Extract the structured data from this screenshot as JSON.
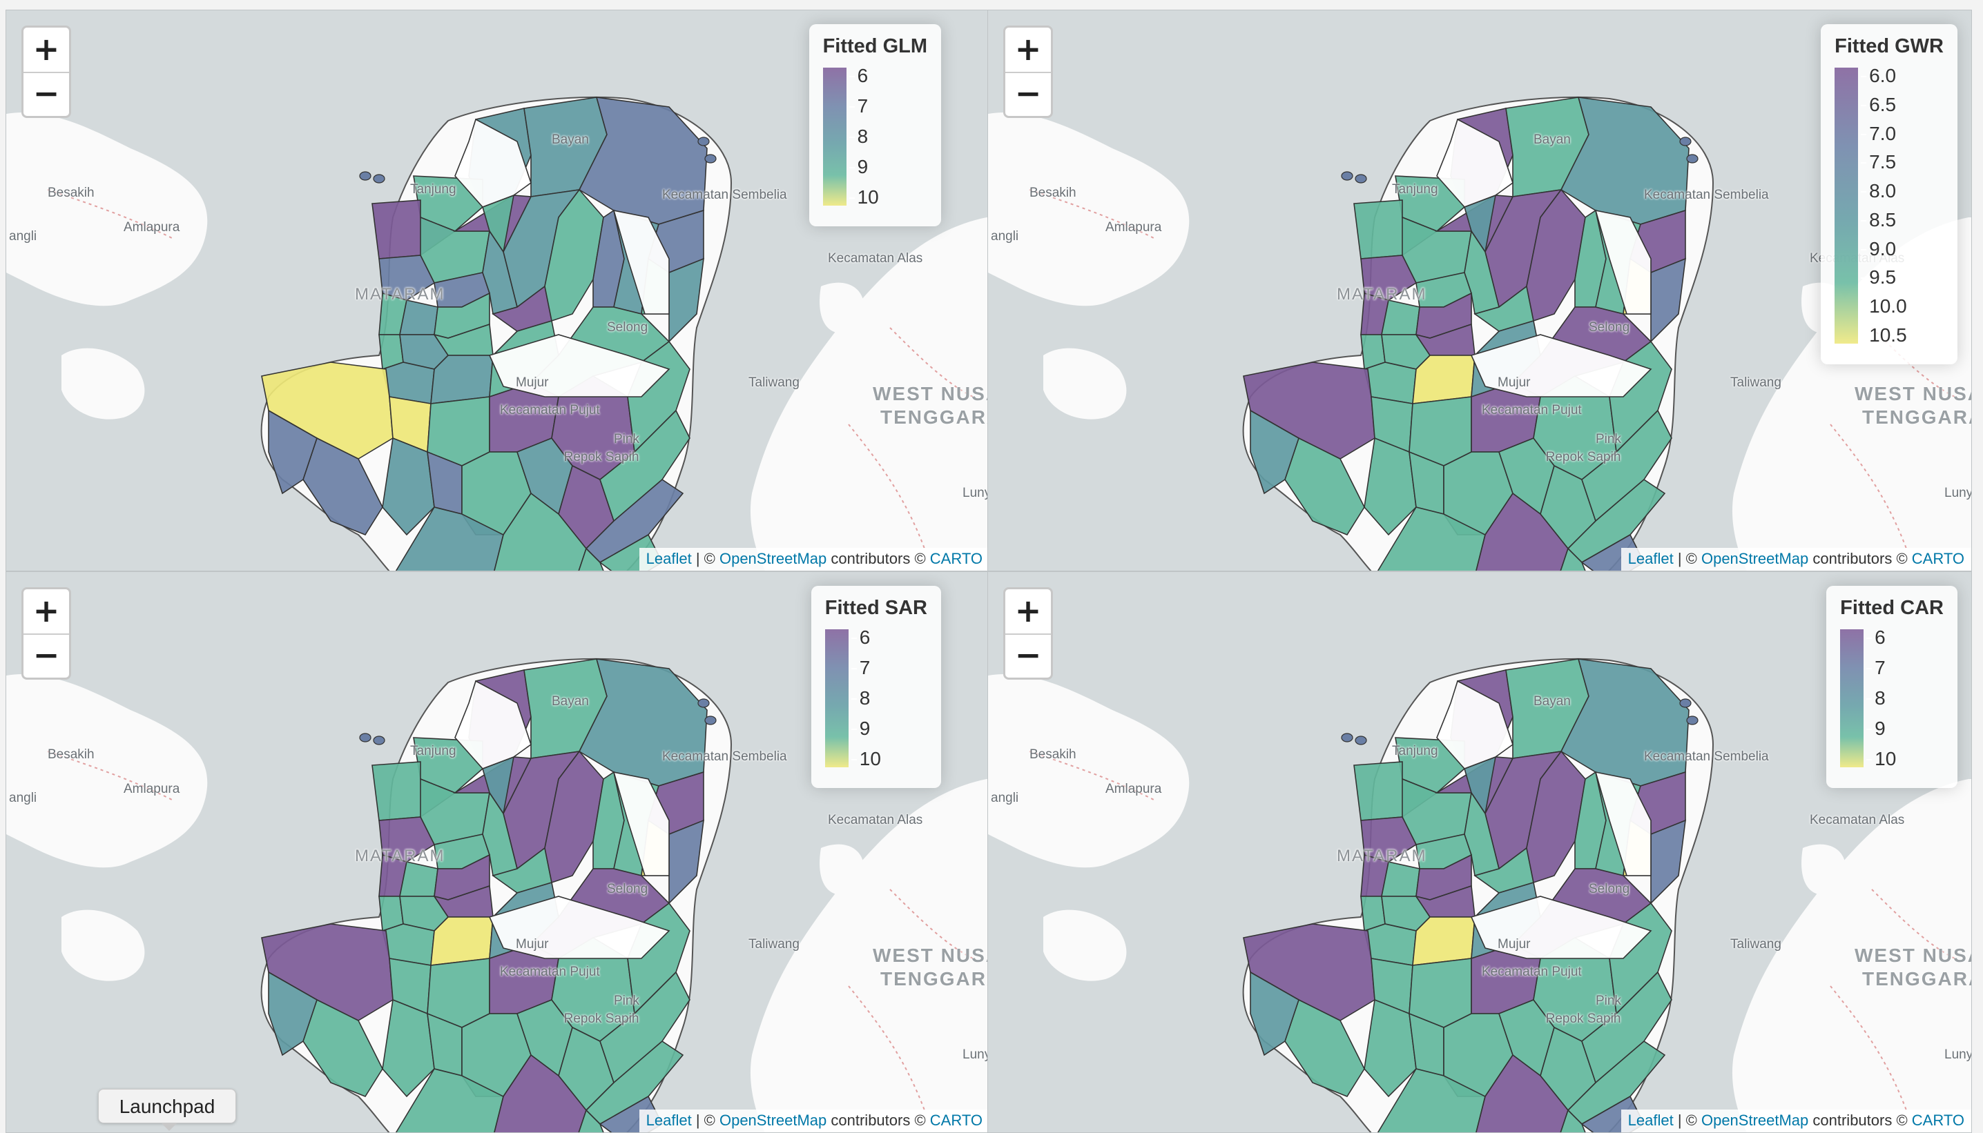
{
  "zoom": {
    "in_label": "+",
    "out_label": "−"
  },
  "attribution": {
    "leaflet": "Leaflet",
    "sep": " | © ",
    "osm": "OpenStreetMap",
    "contributors": " contributors © ",
    "carto": "CARTO"
  },
  "places": {
    "besakih": "Besakih",
    "amlapura": "Amlapura",
    "angli": "angli",
    "tanjung": "Tanjung",
    "bayan": "Bayan",
    "kecamatan_sembelia": "Kecamatan Sembelia",
    "kecamatan_alas": "Kecamatan Alas",
    "mataram": "MATARAM",
    "selong": "Selong",
    "mujur": "Mujur",
    "kecamatan_pujut": "Kecamatan Pujut",
    "pink": "Pink",
    "repok_sapih": "Repok Sapih",
    "taliwang": "Taliwang",
    "west_nusa": "WEST NUSA",
    "tenggara": "TENGGARA",
    "luny": "Luny"
  },
  "panels": [
    {
      "legend_title": "Fitted GLM",
      "ticks": [
        "6",
        "7",
        "8",
        "9",
        "10"
      ],
      "classes": [
        "d3",
        "d3",
        "d2",
        "d4",
        "d1",
        "d4",
        "d1",
        "d3",
        "d4",
        "d2",
        "d2",
        "d3",
        "d4",
        "d3",
        "d4",
        "d1",
        "d4",
        "d2",
        "d3",
        "d4",
        "d3",
        "d4",
        "d2",
        "d4",
        "d3",
        "d3",
        "d4",
        "d3",
        "d5",
        "d5",
        "d4",
        "d1",
        "d4",
        "d3",
        "d2",
        "d4",
        "d3",
        "d1",
        "d4",
        "d1",
        "d4",
        "d2",
        "d3",
        "d4",
        "d4",
        "d4",
        "d2",
        "d2"
      ]
    },
    {
      "legend_title": "Fitted GWR",
      "ticks": [
        "6.0",
        "6.5",
        "7.0",
        "7.5",
        "8.0",
        "8.5",
        "9.0",
        "9.5",
        "10.0",
        "10.5"
      ],
      "classes": [
        "d1",
        "d4",
        "d3",
        "d4",
        "d4",
        "d4",
        "d1",
        "d1",
        "d3",
        "d1",
        "d4",
        "d4",
        "d1",
        "d4",
        "d1",
        "d4",
        "d1",
        "d4",
        "d4",
        "d4",
        "d4",
        "d1",
        "d1",
        "d5",
        "d4",
        "d5",
        "d3",
        "d2",
        "d1",
        "d4",
        "d4",
        "d1",
        "d1",
        "d4",
        "d4",
        "d4",
        "d4",
        "d4",
        "d4",
        "d4",
        "d4",
        "d4",
        "d4",
        "d1",
        "d4",
        "d2",
        "d4",
        "d3"
      ]
    },
    {
      "legend_title": "Fitted SAR",
      "ticks": [
        "6",
        "7",
        "8",
        "9",
        "10"
      ],
      "classes": [
        "d1",
        "d4",
        "d3",
        "d4",
        "d4",
        "d4",
        "d1",
        "d1",
        "d3",
        "d1",
        "d4",
        "d4",
        "d1",
        "d4",
        "d1",
        "d4",
        "d1",
        "d4",
        "d4",
        "d4",
        "d4",
        "d1",
        "d1",
        "d5",
        "d4",
        "d5",
        "d3",
        "d2",
        "d1",
        "d4",
        "d4",
        "d1",
        "d1",
        "d4",
        "d4",
        "d4",
        "d4",
        "d4",
        "d4",
        "d4",
        "d4",
        "d4",
        "d4",
        "d1",
        "d4",
        "d2",
        "d4",
        "d3"
      ]
    },
    {
      "legend_title": "Fitted CAR",
      "ticks": [
        "6",
        "7",
        "8",
        "9",
        "10"
      ],
      "classes": [
        "d1",
        "d4",
        "d3",
        "d4",
        "d4",
        "d4",
        "d1",
        "d1",
        "d3",
        "d1",
        "d4",
        "d4",
        "d1",
        "d4",
        "d1",
        "d4",
        "d1",
        "d4",
        "d4",
        "d4",
        "d4",
        "d1",
        "d1",
        "d5",
        "d4",
        "d5",
        "d3",
        "d2",
        "d1",
        "d4",
        "d4",
        "d1",
        "d1",
        "d4",
        "d4",
        "d4",
        "d4",
        "d4",
        "d4",
        "d4",
        "d4",
        "d4",
        "d4",
        "d1",
        "d4",
        "d2",
        "d4",
        "d3"
      ]
    }
  ],
  "taskbar": {
    "launchpad_label": "Launchpad"
  },
  "colors": {
    "water": "#d4dadc",
    "land": "#fafafa",
    "d1": "#7c5a97",
    "d2": "#6a7fa5",
    "d3": "#5f9aa2",
    "d4": "#62b79c",
    "d5": "#eee777"
  }
}
